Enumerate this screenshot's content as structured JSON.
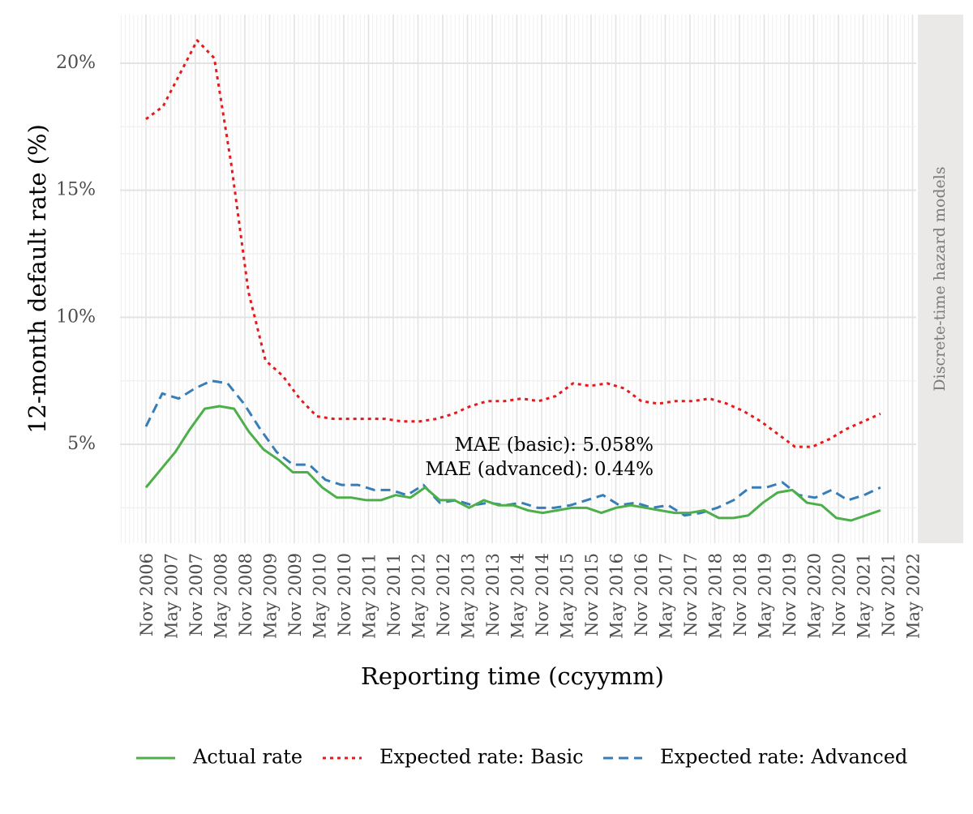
{
  "chart_data": {
    "type": "line",
    "ylabel": "12-month default rate (%)",
    "xlabel": "Reporting time (ccyymm)",
    "facet_label": "Discrete-time hazard models",
    "ylim": [
      0.0125,
      0.22
    ],
    "y_ticks": [
      0.05,
      0.1,
      0.15,
      0.2
    ],
    "y_tick_labels": [
      "5%",
      "10%",
      "15%",
      "20%"
    ],
    "x_tick_labels": [
      "Nov 2006",
      "May 2007",
      "Nov 2007",
      "May 2008",
      "Nov 2008",
      "May 2009",
      "Nov 2009",
      "May 2010",
      "Nov 2010",
      "May 2011",
      "Nov 2011",
      "May 2012",
      "Nov 2012",
      "May 2013",
      "Nov 2013",
      "May 2014",
      "Nov 2014",
      "May 2015",
      "Nov 2015",
      "May 2016",
      "Nov 2016",
      "May 2017",
      "Nov 2017",
      "May 2018",
      "Nov 2018",
      "May 2019",
      "Nov 2019",
      "May 2020",
      "Nov 2020",
      "May 2021",
      "Nov 2021",
      "May 2022"
    ],
    "x_first": "2006-11",
    "x_step_months": 3,
    "grid": true,
    "legend_position": "bottom",
    "annotations": [
      "MAE (basic): 5.058%",
      "MAE (advanced): 0.44%"
    ],
    "series": [
      {
        "name": "Actual rate",
        "color": "#4daf4a",
        "dash": "solid",
        "values": [
          0.033,
          0.04,
          0.047,
          0.056,
          0.064,
          0.065,
          0.064,
          0.055,
          0.048,
          0.044,
          0.039,
          0.039,
          0.033,
          0.029,
          0.029,
          0.028,
          0.028,
          0.03,
          0.029,
          0.033,
          0.028,
          0.028,
          0.025,
          0.028,
          0.026,
          0.026,
          0.024,
          0.023,
          0.024,
          0.025,
          0.025,
          0.023,
          0.025,
          0.026,
          0.025,
          0.024,
          0.023,
          0.023,
          0.024,
          0.021,
          0.021,
          0.022,
          0.027,
          0.031,
          0.032,
          0.027,
          0.026,
          0.021,
          0.02,
          0.022,
          0.024
        ]
      },
      {
        "name": "Expected rate: Basic",
        "color": "#e41a1c",
        "dash": "dotted",
        "values": [
          0.178,
          0.183,
          0.196,
          0.209,
          0.202,
          0.16,
          0.11,
          0.083,
          0.077,
          0.068,
          0.061,
          0.06,
          0.06,
          0.06,
          0.06,
          0.059,
          0.059,
          0.06,
          0.062,
          0.065,
          0.067,
          0.067,
          0.068,
          0.067,
          0.069,
          0.074,
          0.073,
          0.074,
          0.072,
          0.067,
          0.066,
          0.067,
          0.067,
          0.068,
          0.066,
          0.063,
          0.059,
          0.054,
          0.049,
          0.049,
          0.052,
          0.056,
          0.059,
          0.062
        ]
      },
      {
        "name": "Expected rate: Advanced",
        "color": "#377eb8",
        "dash": "dashed",
        "values": [
          0.057,
          0.07,
          0.068,
          0.072,
          0.075,
          0.074,
          0.066,
          0.056,
          0.047,
          0.042,
          0.042,
          0.036,
          0.034,
          0.034,
          0.032,
          0.032,
          0.03,
          0.034,
          0.027,
          0.028,
          0.026,
          0.027,
          0.026,
          0.027,
          0.025,
          0.025,
          0.026,
          0.028,
          0.03,
          0.026,
          0.027,
          0.025,
          0.026,
          0.022,
          0.023,
          0.025,
          0.028,
          0.033,
          0.033,
          0.035,
          0.03,
          0.029,
          0.032,
          0.028,
          0.03,
          0.033
        ]
      }
    ]
  }
}
